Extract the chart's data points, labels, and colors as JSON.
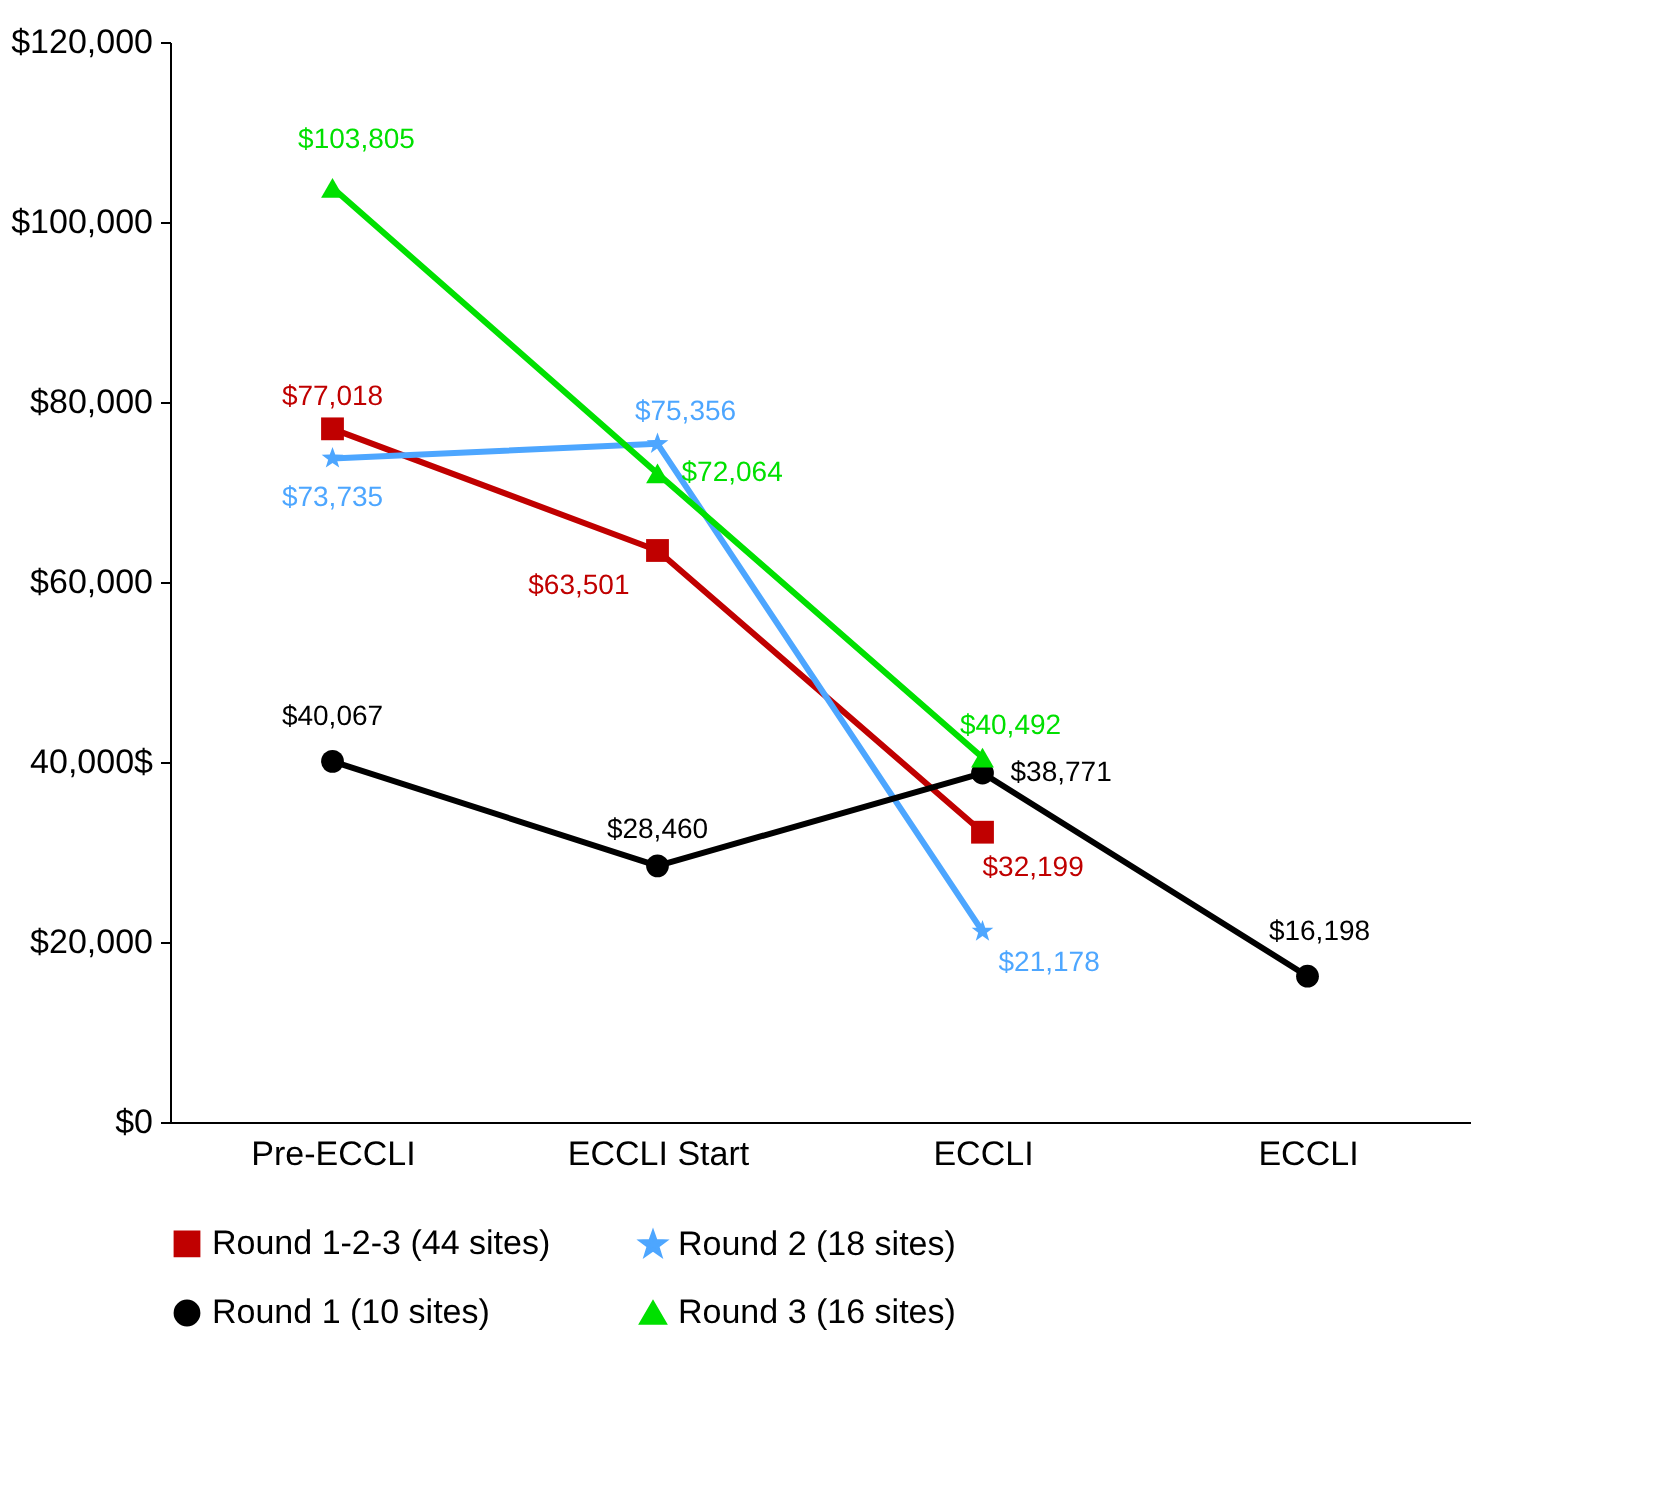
{
  "chart_data": {
    "type": "line",
    "categories": [
      "Pre-ECCLI",
      "ECCLI Start",
      "ECCLI",
      "ECCLI"
    ],
    "ylim": [
      0,
      120000
    ],
    "yticks": [
      {
        "value": 0,
        "label": "$0"
      },
      {
        "value": 20000,
        "label": "$20,000"
      },
      {
        "value": 40000,
        "label": "40,000$"
      },
      {
        "value": 60000,
        "label": "$60,000"
      },
      {
        "value": 80000,
        "label": "$80,000"
      },
      {
        "value": 100000,
        "label": "$100,000"
      },
      {
        "value": 120000,
        "label": "$120,000"
      }
    ],
    "series": [
      {
        "name": "Round 1-2-3 (44 sites)",
        "color": "#c00000",
        "marker": "square",
        "values": [
          77018,
          63501,
          32199,
          null
        ],
        "value_labels": [
          "$77,018",
          "$63,501",
          "$32,199",
          null
        ]
      },
      {
        "name": "Round 2 (18 sites)",
        "color": "#4da6ff",
        "marker": "star",
        "values": [
          73735,
          75356,
          21178,
          null
        ],
        "value_labels": [
          "$73,735",
          "$75,356",
          "$21,178",
          null
        ]
      },
      {
        "name": "Round 1 (10 sites)",
        "color": "#000000",
        "marker": "circle",
        "values": [
          40067,
          28460,
          38771,
          16198
        ],
        "value_labels": [
          "$40,067",
          "$28,460",
          "$38,771",
          "$16,198"
        ]
      },
      {
        "name": "Round 3 (16 sites)",
        "color": "#00e000",
        "marker": "triangle",
        "values": [
          103805,
          72064,
          40492,
          null
        ],
        "value_labels": [
          "$103,805",
          "$72,064",
          "$40,492",
          null
        ]
      }
    ],
    "grid": false,
    "legend": "bottom",
    "line_style": "solid"
  }
}
